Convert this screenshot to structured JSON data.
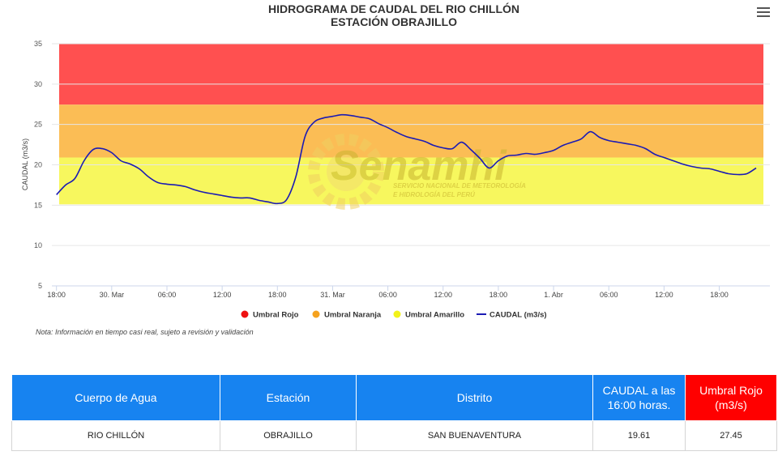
{
  "chart_data": {
    "type": "line",
    "title_line1": "HIDROGRAMA DE CAUDAL DEL RIO CHILLÓN",
    "title_line2": "ESTACIÓN OBRAJILLO",
    "ylabel": "CAUDAL (m3/s)",
    "ylim": [
      5,
      35
    ],
    "yticks": [
      5,
      10,
      15,
      20,
      25,
      30,
      35
    ],
    "x_range_hours": [
      -0.5,
      64.5
    ],
    "xticks": [
      {
        "h": 0,
        "label": "18:00"
      },
      {
        "h": 6,
        "label": "30. Mar"
      },
      {
        "h": 12,
        "label": "06:00"
      },
      {
        "h": 18,
        "label": "12:00"
      },
      {
        "h": 24,
        "label": "18:00"
      },
      {
        "h": 30,
        "label": "31. Mar"
      },
      {
        "h": 36,
        "label": "06:00"
      },
      {
        "h": 42,
        "label": "12:00"
      },
      {
        "h": 48,
        "label": "18:00"
      },
      {
        "h": 54,
        "label": "1. Abr"
      },
      {
        "h": 60,
        "label": "06:00"
      },
      {
        "h": 66,
        "label": "12:00"
      },
      {
        "h": 72,
        "label": "18:00"
      }
    ],
    "bands": [
      {
        "name": "Umbral Rojo",
        "from": 27.45,
        "to": 35,
        "color": "#ff5050"
      },
      {
        "name": "Umbral Naranja",
        "from": 20.9,
        "to": 27.45,
        "color": "#fbbd55"
      },
      {
        "name": "Umbral Amarillo",
        "from": 15.1,
        "to": 20.9,
        "color": "#f7f75e"
      }
    ],
    "series": [
      {
        "name": "CAUDAL (m3/s)",
        "color": "#1b1bb4",
        "points": [
          [
            0,
            16.3
          ],
          [
            1,
            17.5
          ],
          [
            2,
            18.3
          ],
          [
            3,
            20.5
          ],
          [
            4,
            21.9
          ],
          [
            5,
            22.0
          ],
          [
            6,
            21.5
          ],
          [
            7,
            20.5
          ],
          [
            8,
            20.1
          ],
          [
            9,
            19.5
          ],
          [
            10,
            18.5
          ],
          [
            11,
            17.8
          ],
          [
            12,
            17.6
          ],
          [
            13,
            17.5
          ],
          [
            14,
            17.3
          ],
          [
            15,
            16.9
          ],
          [
            16,
            16.6
          ],
          [
            17,
            16.4
          ],
          [
            18,
            16.2
          ],
          [
            19,
            16.0
          ],
          [
            20,
            15.9
          ],
          [
            21,
            15.9
          ],
          [
            22,
            15.6
          ],
          [
            23,
            15.4
          ],
          [
            24,
            15.2
          ],
          [
            25,
            15.7
          ],
          [
            26,
            18.5
          ],
          [
            27,
            23.5
          ],
          [
            28,
            25.3
          ],
          [
            29,
            25.8
          ],
          [
            30,
            26.0
          ],
          [
            31,
            26.2
          ],
          [
            32,
            26.1
          ],
          [
            33,
            25.9
          ],
          [
            34,
            25.7
          ],
          [
            35,
            25.1
          ],
          [
            36,
            24.6
          ],
          [
            37,
            24.0
          ],
          [
            38,
            23.5
          ],
          [
            39,
            23.2
          ],
          [
            40,
            22.9
          ],
          [
            41,
            22.4
          ],
          [
            42,
            22.1
          ],
          [
            43,
            22.0
          ],
          [
            44,
            22.8
          ],
          [
            45,
            21.9
          ],
          [
            46,
            20.8
          ],
          [
            47,
            19.6
          ],
          [
            48,
            20.5
          ],
          [
            49,
            21.1
          ],
          [
            50,
            21.2
          ],
          [
            51,
            21.4
          ],
          [
            52,
            21.3
          ],
          [
            53,
            21.5
          ],
          [
            54,
            21.8
          ],
          [
            55,
            22.4
          ],
          [
            56,
            22.8
          ],
          [
            57,
            23.2
          ],
          [
            58,
            24.1
          ],
          [
            59,
            23.4
          ],
          [
            60,
            23.0
          ],
          [
            61,
            22.8
          ],
          [
            62,
            22.6
          ],
          [
            63,
            22.4
          ],
          [
            64,
            22.0
          ],
          [
            65,
            21.3
          ],
          [
            66,
            20.9
          ],
          [
            67,
            20.5
          ],
          [
            68,
            20.1
          ],
          [
            69,
            19.8
          ],
          [
            70,
            19.6
          ],
          [
            71,
            19.5
          ],
          [
            72,
            19.2
          ],
          [
            73,
            18.9
          ],
          [
            74,
            18.8
          ],
          [
            75,
            18.9
          ],
          [
            76,
            19.6
          ]
        ]
      }
    ],
    "x_extent_hours": [
      -0.5,
      77.5
    ],
    "legend_placement": "bottom-center"
  },
  "chart_legend": [
    {
      "label": "Umbral Rojo",
      "color": "#ee1111",
      "kind": "dot"
    },
    {
      "label": "Umbral Naranja",
      "color": "#f5a21e",
      "kind": "dot"
    },
    {
      "label": "Umbral Amarillo",
      "color": "#f2f21a",
      "kind": "dot"
    },
    {
      "label": "CAUDAL (m3/s)",
      "color": "#1b1bb4",
      "kind": "line"
    }
  ],
  "watermark": {
    "brand": "Senamhi",
    "line1": "SERVICIO NACIONAL DE METEOROLOGÍA",
    "line2": "E HIDROLOGÍA DEL PERÚ"
  },
  "note": "Nota: Información en tiempo casi real, sujeto a revisión y validación",
  "table": {
    "headers": [
      "Cuerpo de Agua",
      "Estación",
      "Distrito",
      "CAUDAL a las 16:00 horas.",
      "Umbral Rojo (m3/s)"
    ],
    "row": [
      "RIO CHILLÓN",
      "OBRAJILLO",
      "SAN BUENAVENTURA",
      "19.61",
      "27.45"
    ]
  }
}
